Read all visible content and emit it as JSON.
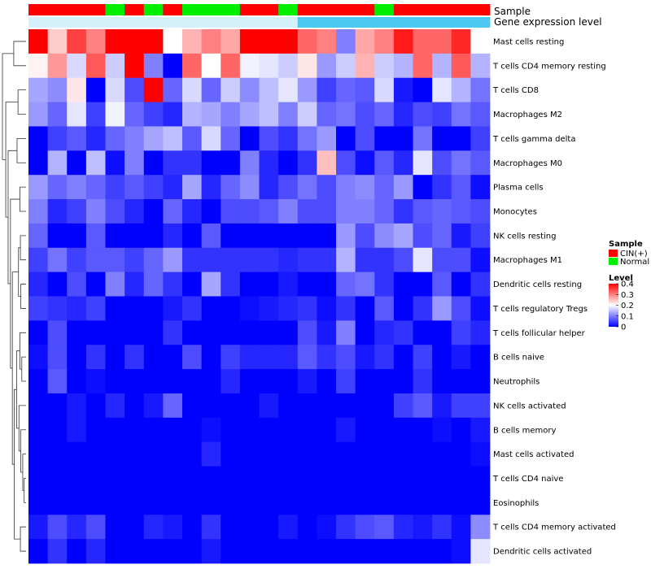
{
  "chart_data": {
    "type": "heatmap",
    "annotation_labels": {
      "sample": "Sample",
      "expression": "Gene expression level"
    },
    "columns": [
      {
        "sample": "CIN(+)"
      },
      {
        "sample": "CIN(+)"
      },
      {
        "sample": "CIN(+)"
      },
      {
        "sample": "CIN(+)"
      },
      {
        "sample": "Normal"
      },
      {
        "sample": "CIN(+)"
      },
      {
        "sample": "Normal"
      },
      {
        "sample": "CIN(+)"
      },
      {
        "sample": "Normal"
      },
      {
        "sample": "Normal"
      },
      {
        "sample": "Normal"
      },
      {
        "sample": "CIN(+)"
      },
      {
        "sample": "CIN(+)"
      },
      {
        "sample": "Normal"
      },
      {
        "sample": "CIN(+)"
      },
      {
        "sample": "CIN(+)"
      },
      {
        "sample": "CIN(+)"
      },
      {
        "sample": "CIN(+)"
      },
      {
        "sample": "Normal"
      },
      {
        "sample": "CIN(+)"
      },
      {
        "sample": "CIN(+)"
      },
      {
        "sample": "CIN(+)"
      },
      {
        "sample": "CIN(+)"
      },
      {
        "sample": "CIN(+)"
      }
    ],
    "expression_annotation": [
      "low",
      "low",
      "low",
      "low",
      "low",
      "low",
      "low",
      "low",
      "low",
      "low",
      "low",
      "low",
      "low",
      "low",
      "high",
      "high",
      "high",
      "high",
      "high",
      "high",
      "high",
      "high",
      "high",
      "high"
    ],
    "rows": [
      "Mast cells resting",
      "T cells CD4 memory resting",
      "T cells CD8",
      "Macrophages M2",
      "T cells gamma delta",
      "Macrophages M0",
      "Plasma cells",
      "Monocytes",
      "NK cells resting",
      "Macrophages M1",
      "Dendritic cells resting",
      "T cells regulatory  Tregs",
      "T cells follicular helper",
      "B cells naive",
      "Neutrophils",
      "NK cells activated",
      "B cells memory",
      "Mast cells activated",
      "T cells CD4 naive",
      "Eosinophils",
      "T cells CD4 memory activated",
      "Dendritic cells activated"
    ],
    "values": [
      [
        0.4,
        0.24,
        0.35,
        0.3,
        0.4,
        0.4,
        0.4,
        0.2,
        0.26,
        0.3,
        0.27,
        0.4,
        0.4,
        0.4,
        0.32,
        0.3,
        0.1,
        0.27,
        0.3,
        0.38,
        0.32,
        0.32,
        0.37,
        0.2
      ],
      [
        0.21,
        0.28,
        0.17,
        0.33,
        0.16,
        0.4,
        0.1,
        0.0,
        0.32,
        0.2,
        0.32,
        0.19,
        0.18,
        0.16,
        0.22,
        0.12,
        0.16,
        0.26,
        0.16,
        0.14,
        0.32,
        0.14,
        0.33,
        0.14
      ],
      [
        0.13,
        0.11,
        0.22,
        0.0,
        0.17,
        0.06,
        0.4,
        0.08,
        0.17,
        0.08,
        0.16,
        0.11,
        0.15,
        0.18,
        0.12,
        0.05,
        0.08,
        0.07,
        0.17,
        0.02,
        0.0,
        0.18,
        0.14,
        0.09
      ],
      [
        0.12,
        0.08,
        0.18,
        0.05,
        0.19,
        0.08,
        0.05,
        0.03,
        0.14,
        0.13,
        0.1,
        0.13,
        0.15,
        0.1,
        0.16,
        0.08,
        0.09,
        0.06,
        0.08,
        0.03,
        0.06,
        0.05,
        0.09,
        0.07
      ],
      [
        0.0,
        0.05,
        0.07,
        0.03,
        0.08,
        0.1,
        0.13,
        0.15,
        0.07,
        0.17,
        0.08,
        0.0,
        0.06,
        0.04,
        0.09,
        0.12,
        0.0,
        0.06,
        0.0,
        0.0,
        0.09,
        0.0,
        0.0,
        0.05
      ],
      [
        0.0,
        0.14,
        0.0,
        0.15,
        0.01,
        0.1,
        0.0,
        0.04,
        0.04,
        0.0,
        0.0,
        0.1,
        0.03,
        0.0,
        0.04,
        0.25,
        0.06,
        0.01,
        0.07,
        0.03,
        0.18,
        0.06,
        0.09,
        0.07
      ],
      [
        0.12,
        0.08,
        0.1,
        0.08,
        0.05,
        0.07,
        0.05,
        0.03,
        0.13,
        0.03,
        0.08,
        0.11,
        0.03,
        0.06,
        0.09,
        0.06,
        0.1,
        0.11,
        0.08,
        0.12,
        0.0,
        0.04,
        0.07,
        0.01
      ],
      [
        0.1,
        0.03,
        0.05,
        0.1,
        0.06,
        0.03,
        0.0,
        0.08,
        0.03,
        0.0,
        0.06,
        0.06,
        0.07,
        0.1,
        0.06,
        0.06,
        0.1,
        0.1,
        0.08,
        0.04,
        0.07,
        0.08,
        0.07,
        0.06
      ],
      [
        0.08,
        0.0,
        0.0,
        0.07,
        0.0,
        0.0,
        0.0,
        0.03,
        0.0,
        0.07,
        0.0,
        0.0,
        0.0,
        0.0,
        0.0,
        0.0,
        0.12,
        0.06,
        0.11,
        0.13,
        0.06,
        0.08,
        0.02,
        0.05
      ],
      [
        0.05,
        0.09,
        0.05,
        0.07,
        0.07,
        0.05,
        0.08,
        0.12,
        0.04,
        0.04,
        0.04,
        0.04,
        0.04,
        0.03,
        0.04,
        0.04,
        0.14,
        0.04,
        0.04,
        0.06,
        0.18,
        0.06,
        0.06,
        0.01
      ],
      [
        0.03,
        0.0,
        0.06,
        0.0,
        0.1,
        0.03,
        0.08,
        0.04,
        0.0,
        0.13,
        0.04,
        0.0,
        0.0,
        0.02,
        0.0,
        0.0,
        0.08,
        0.09,
        0.04,
        0.0,
        0.0,
        0.07,
        0.0,
        0.04
      ],
      [
        0.05,
        0.04,
        0.03,
        0.05,
        0.0,
        0.0,
        0.0,
        0.02,
        0.04,
        0.0,
        0.0,
        0.01,
        0.02,
        0.03,
        0.04,
        0.01,
        0.04,
        0.0,
        0.07,
        0.0,
        0.04,
        0.12,
        0.06,
        0.01
      ],
      [
        0.0,
        0.06,
        0.0,
        0.0,
        0.0,
        0.0,
        0.0,
        0.04,
        0.0,
        0.0,
        0.0,
        0.0,
        0.0,
        0.0,
        0.06,
        0.02,
        0.1,
        0.0,
        0.03,
        0.04,
        0.0,
        0.0,
        0.05,
        0.03
      ],
      [
        0.01,
        0.06,
        0.0,
        0.04,
        0.0,
        0.04,
        0.0,
        0.0,
        0.06,
        0.0,
        0.05,
        0.03,
        0.03,
        0.03,
        0.07,
        0.04,
        0.06,
        0.02,
        0.04,
        0.0,
        0.05,
        0.0,
        0.02,
        0.0
      ],
      [
        0.0,
        0.07,
        0.0,
        0.01,
        0.0,
        0.0,
        0.0,
        0.0,
        0.0,
        0.0,
        0.03,
        0.0,
        0.0,
        0.0,
        0.02,
        0.0,
        0.05,
        0.0,
        0.0,
        0.0,
        0.04,
        0.0,
        0.0,
        0.0
      ],
      [
        0.0,
        0.0,
        0.02,
        0.0,
        0.03,
        0.0,
        0.02,
        0.08,
        0.0,
        0.0,
        0.0,
        0.0,
        0.02,
        0.0,
        0.0,
        0.0,
        0.0,
        0.0,
        0.0,
        0.05,
        0.07,
        0.02,
        0.05,
        0.05
      ],
      [
        0.0,
        0.0,
        0.02,
        0.0,
        0.0,
        0.0,
        0.0,
        0.0,
        0.0,
        0.01,
        0.0,
        0.0,
        0.0,
        0.0,
        0.0,
        0.0,
        0.02,
        0.0,
        0.0,
        0.0,
        0.0,
        0.01,
        0.0,
        0.02
      ],
      [
        0.0,
        0.0,
        0.0,
        0.0,
        0.0,
        0.0,
        0.0,
        0.0,
        0.0,
        0.03,
        0.0,
        0.0,
        0.0,
        0.0,
        0.0,
        0.0,
        0.0,
        0.0,
        0.0,
        0.0,
        0.0,
        0.0,
        0.0,
        0.01
      ],
      [
        0.0,
        0.0,
        0.0,
        0.0,
        0.0,
        0.0,
        0.0,
        0.0,
        0.0,
        0.0,
        0.0,
        0.0,
        0.0,
        0.0,
        0.0,
        0.0,
        0.0,
        0.0,
        0.0,
        0.0,
        0.0,
        0.0,
        0.0,
        0.0
      ],
      [
        0.0,
        0.0,
        0.0,
        0.0,
        0.0,
        0.0,
        0.0,
        0.0,
        0.0,
        0.0,
        0.0,
        0.0,
        0.0,
        0.0,
        0.0,
        0.0,
        0.0,
        0.0,
        0.0,
        0.0,
        0.0,
        0.0,
        0.0,
        0.0
      ],
      [
        0.02,
        0.06,
        0.03,
        0.06,
        0.0,
        0.0,
        0.03,
        0.02,
        0.0,
        0.04,
        0.0,
        0.0,
        0.0,
        0.02,
        0.0,
        0.01,
        0.04,
        0.06,
        0.07,
        0.03,
        0.02,
        0.04,
        0.01,
        0.11
      ],
      [
        0.0,
        0.04,
        0.0,
        0.03,
        0.0,
        0.0,
        0.0,
        0.0,
        0.0,
        0.02,
        0.0,
        0.0,
        0.0,
        0.0,
        0.0,
        0.0,
        0.0,
        0.0,
        0.0,
        0.0,
        0.0,
        0.0,
        0.01,
        0.18
      ]
    ],
    "value_range": [
      0,
      0.4
    ],
    "color_scale": {
      "low": "#0000ff",
      "mid": "#ffffff",
      "high": "#ff0000",
      "midpoint": 0.2
    },
    "sample_colors": {
      "CIN(+)": "#ff0000",
      "Normal": "#00ee00"
    },
    "expression_colors": {
      "low": "#d4f0fa",
      "high": "#4dc8f0"
    },
    "legend": {
      "sample_title": "Sample",
      "sample_items": [
        {
          "label": "CIN(+)",
          "color": "#ff0000"
        },
        {
          "label": "Normal",
          "color": "#00ee00"
        }
      ],
      "level_title": "Level",
      "level_ticks": [
        "0.4",
        "0.3",
        "0.2",
        "0.1",
        "0"
      ],
      "level_tick_values": [
        0.4,
        0.3,
        0.2,
        0.1,
        0
      ]
    },
    "row_dendrogram": {
      "merges": [
        [
          -19,
          -20
        ],
        [
          -18,
          1
        ],
        [
          -17,
          2
        ],
        [
          -16,
          3
        ],
        [
          -15,
          -14
        ],
        [
          -13,
          5
        ],
        [
          4,
          6
        ],
        [
          -22,
          -21
        ],
        [
          7,
          8
        ],
        [
          -12,
          -11
        ],
        [
          -10,
          -9
        ],
        [
          10,
          11
        ],
        [
          9,
          12
        ],
        [
          -8,
          -7
        ],
        [
          13,
          14
        ],
        [
          -6,
          -5
        ],
        [
          15,
          16
        ],
        [
          -4,
          -3
        ],
        [
          17,
          18
        ],
        [
          -2,
          -1
        ],
        [
          19,
          20
        ]
      ],
      "heights": [
        0.4,
        0.7,
        1.1,
        1.5,
        0.9,
        1.3,
        2.0,
        1.2,
        2.5,
        1.1,
        1.2,
        1.6,
        2.9,
        1.3,
        3.3,
        1.9,
        3.8,
        1.7,
        4.3,
        2.6,
        5.0
      ]
    }
  }
}
